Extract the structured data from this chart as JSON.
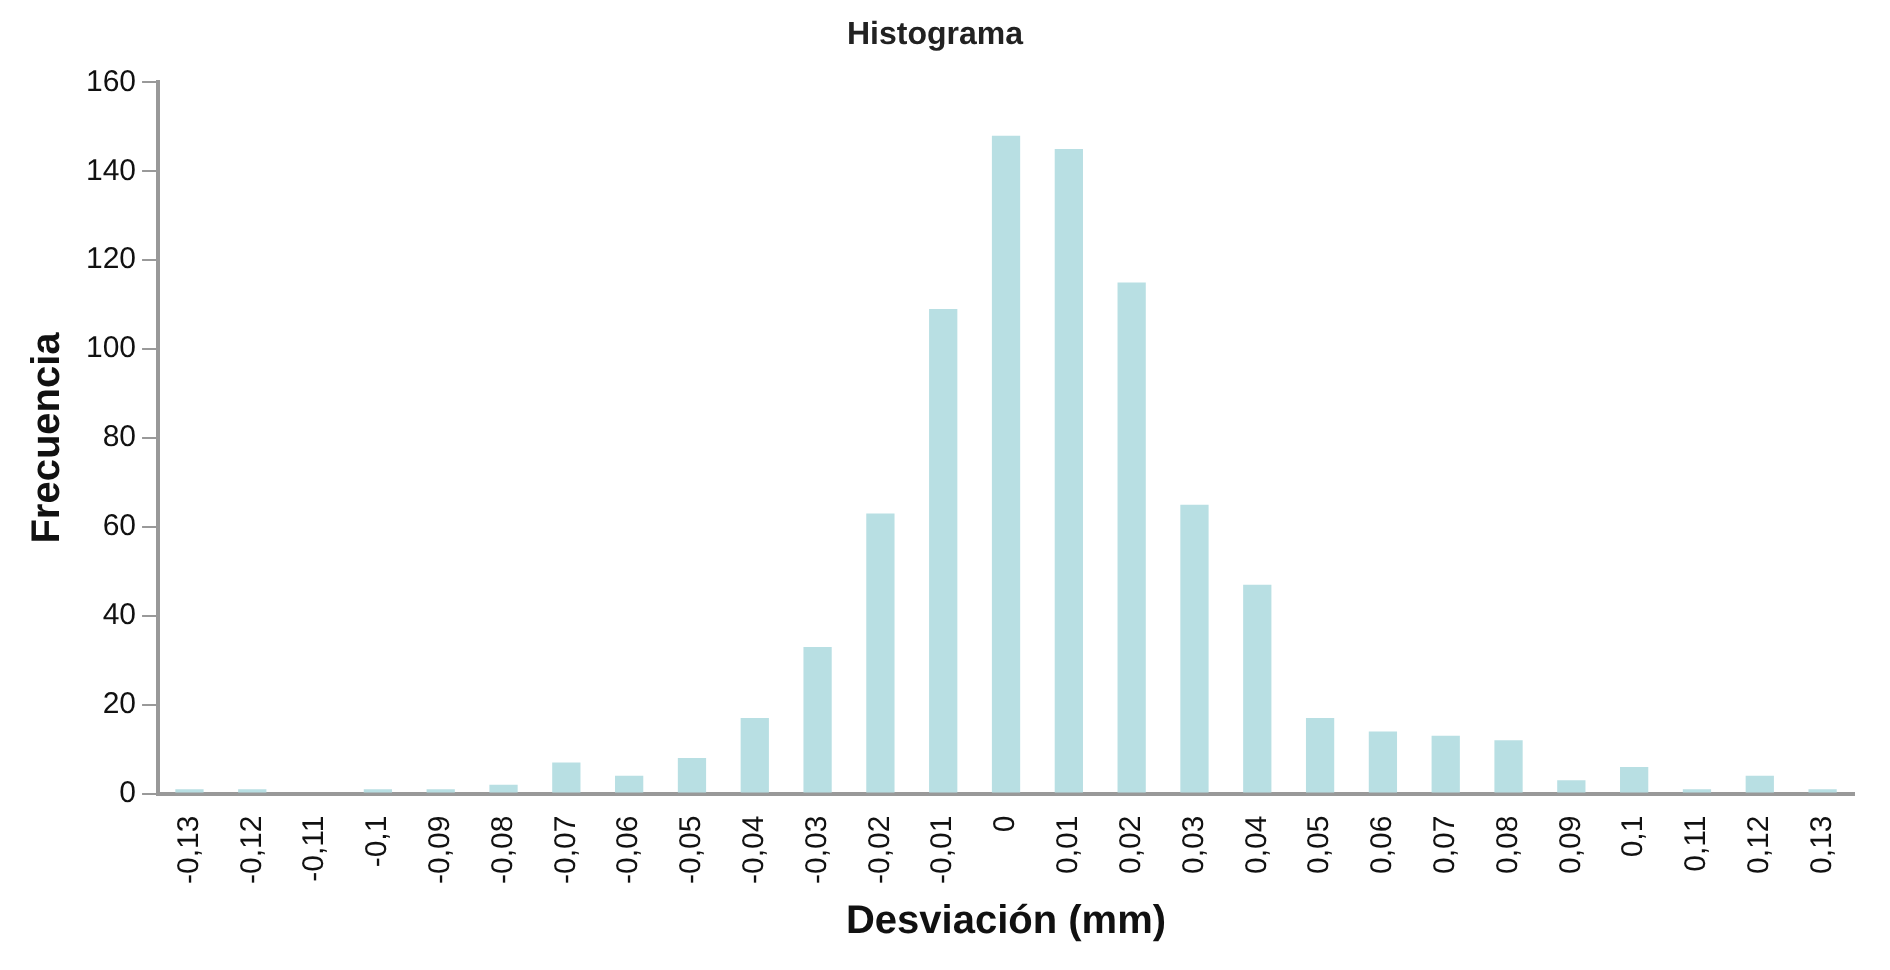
{
  "chart_data": {
    "type": "bar",
    "title": "Histograma",
    "xlabel": "Desviación (mm)",
    "ylabel": "Frecuencia",
    "categories": [
      "-0,13",
      "-0,12",
      "-0,11",
      "-0,1",
      "-0,09",
      "-0,08",
      "-0,07",
      "-0,06",
      "-0,05",
      "-0,04",
      "-0,03",
      "-0,02",
      "-0,01",
      "0",
      "0,01",
      "0,02",
      "0,03",
      "0,04",
      "0,05",
      "0,06",
      "0,07",
      "0,08",
      "0,09",
      "0,1",
      "0,11",
      "0,12",
      "0,13"
    ],
    "values": [
      1,
      1,
      0,
      1,
      1,
      2,
      7,
      4,
      8,
      17,
      33,
      63,
      109,
      148,
      145,
      115,
      65,
      47,
      17,
      14,
      13,
      12,
      3,
      6,
      1,
      4,
      1
    ],
    "color": "#b8dfe3",
    "ylim": [
      0,
      160
    ],
    "yticks": [
      0,
      20,
      40,
      60,
      80,
      100,
      120,
      140,
      160
    ],
    "grid": false,
    "legend": false
  }
}
